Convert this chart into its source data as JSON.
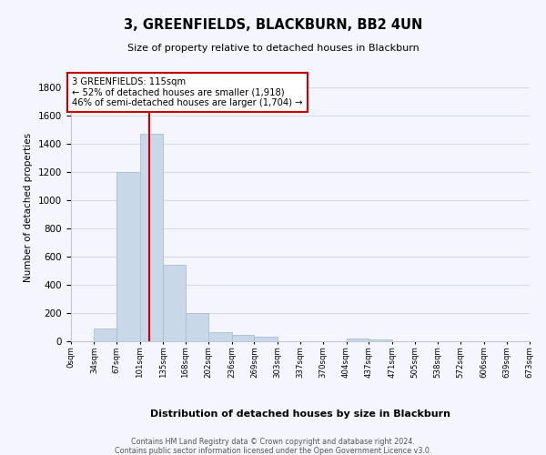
{
  "title": "3, GREENFIELDS, BLACKBURN, BB2 4UN",
  "subtitle": "Size of property relative to detached houses in Blackburn",
  "xlabel": "Distribution of detached houses by size in Blackburn",
  "ylabel": "Number of detached properties",
  "bar_color": "#c8d8e8",
  "bar_edge_color": "#a8bece",
  "grid_color": "#d4dce6",
  "background_color": "#f5f5ff",
  "annotation_box_color": "#ffffff",
  "annotation_box_edge": "#cc0000",
  "vline_color": "#cc0000",
  "vline_x": 115,
  "annotation_text_line1": "3 GREENFIELDS: 115sqm",
  "annotation_text_line2": "← 52% of detached houses are smaller (1,918)",
  "annotation_text_line3": "46% of semi-detached houses are larger (1,704) →",
  "footnote1": "Contains HM Land Registry data © Crown copyright and database right 2024.",
  "footnote2": "Contains public sector information licensed under the Open Government Licence v3.0.",
  "bin_edges": [
    0,
    34,
    67,
    101,
    135,
    168,
    202,
    236,
    269,
    303,
    337,
    370,
    404,
    437,
    471,
    505,
    538,
    572,
    606,
    639,
    673
  ],
  "bin_counts": [
    0,
    90,
    1200,
    1470,
    540,
    200,
    65,
    48,
    30,
    0,
    0,
    0,
    20,
    10,
    0,
    0,
    0,
    0,
    0,
    0
  ],
  "ylim": [
    0,
    1900
  ],
  "yticks": [
    0,
    200,
    400,
    600,
    800,
    1000,
    1200,
    1400,
    1600,
    1800
  ]
}
